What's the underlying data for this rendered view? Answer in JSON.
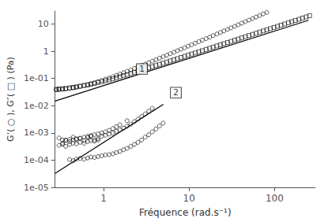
{
  "chart_data": {
    "type": "scatter",
    "log": true,
    "grid": false,
    "xlabel": "Fréquence (rad.s⁻¹)",
    "ylabel": "G’( ○ ), G″( □ ) (Pa)",
    "xlim": [
      0.27,
      300
    ],
    "ylim": [
      1e-05,
      30
    ],
    "xticks": [
      1,
      10,
      100
    ],
    "yticks": [
      {
        "value": 1e-05,
        "label": "1e-05"
      },
      {
        "value": 0.0001,
        "label": "1e-04"
      },
      {
        "value": 0.001,
        "label": "1e-03"
      },
      {
        "value": 0.01,
        "label": "1e-02"
      },
      {
        "value": 0.1,
        "label": "1e-01"
      },
      1,
      10
    ],
    "annotations": [
      {
        "text": "1",
        "x": 2.8,
        "y": 0.22
      },
      {
        "text": "2",
        "x": 7.0,
        "y": 0.03
      }
    ],
    "series": [
      {
        "type": "scatter",
        "marker": "square",
        "color": "black",
        "values": [
          [
            0.28,
            0.04
          ],
          [
            0.3,
            0.041
          ],
          [
            0.33,
            0.042
          ],
          [
            0.36,
            0.043
          ],
          [
            0.4,
            0.045
          ],
          [
            0.44,
            0.047
          ],
          [
            0.48,
            0.049
          ],
          [
            0.53,
            0.052
          ],
          [
            0.59,
            0.055
          ],
          [
            0.65,
            0.058
          ],
          [
            0.71,
            0.062
          ],
          [
            0.78,
            0.066
          ],
          [
            0.86,
            0.071
          ],
          [
            0.95,
            0.076
          ],
          [
            1.05,
            0.082
          ],
          [
            1.16,
            0.089
          ],
          [
            1.28,
            0.097
          ],
          [
            1.41,
            0.106
          ],
          [
            1.55,
            0.116
          ],
          [
            1.71,
            0.127
          ],
          [
            1.88,
            0.139
          ],
          [
            2.08,
            0.153
          ],
          [
            2.29,
            0.169
          ],
          [
            2.52,
            0.185
          ],
          [
            2.78,
            0.204
          ],
          [
            3.06,
            0.224
          ],
          [
            3.37,
            0.246
          ],
          [
            3.71,
            0.271
          ],
          [
            4.09,
            0.299
          ],
          [
            4.51,
            0.33
          ],
          [
            4.97,
            0.363
          ],
          [
            5.47,
            0.4
          ],
          [
            6.02,
            0.441
          ],
          [
            6.63,
            0.486
          ],
          [
            7.3,
            0.535
          ],
          [
            8.04,
            0.59
          ],
          [
            8.85,
            0.65
          ],
          [
            9.75,
            0.715
          ],
          [
            10.7,
            0.787
          ],
          [
            11.8,
            0.867
          ],
          [
            13.0,
            0.955
          ],
          [
            14.3,
            1.052
          ],
          [
            15.8,
            1.16
          ],
          [
            17.4,
            1.28
          ],
          [
            19.1,
            1.41
          ],
          [
            21.1,
            1.56
          ],
          [
            23.2,
            1.72
          ],
          [
            25.5,
            1.9
          ],
          [
            28.1,
            2.09
          ],
          [
            30.9,
            2.3
          ],
          [
            34.1,
            2.54
          ],
          [
            37.5,
            2.8
          ],
          [
            41.3,
            3.09
          ],
          [
            45.5,
            3.41
          ],
          [
            50.1,
            3.76
          ],
          [
            55.2,
            4.15
          ],
          [
            60.8,
            4.57
          ],
          [
            66.9,
            5.04
          ],
          [
            73.7,
            5.56
          ],
          [
            81.1,
            6.13
          ],
          [
            89.3,
            6.77
          ],
          [
            98.3,
            7.47
          ],
          [
            108,
            8.23
          ],
          [
            119,
            9.07
          ],
          [
            131,
            10.0
          ],
          [
            145,
            11.1
          ],
          [
            159,
            12.2
          ],
          [
            175,
            13.5
          ],
          [
            193,
            14.9
          ],
          [
            212,
            16.5
          ],
          [
            234,
            18.2
          ],
          [
            257,
            20.1
          ]
        ]
      },
      {
        "type": "scatter",
        "marker": "circle",
        "color": "black",
        "values": [
          [
            0.28,
            0.038
          ],
          [
            0.3,
            0.039
          ],
          [
            0.33,
            0.04
          ],
          [
            0.36,
            0.041
          ],
          [
            0.4,
            0.043
          ],
          [
            0.44,
            0.045
          ],
          [
            0.48,
            0.048
          ],
          [
            0.53,
            0.051
          ],
          [
            0.59,
            0.055
          ],
          [
            0.65,
            0.059
          ],
          [
            0.71,
            0.064
          ],
          [
            0.78,
            0.07
          ],
          [
            0.86,
            0.077
          ],
          [
            0.95,
            0.085
          ],
          [
            1.05,
            0.094
          ],
          [
            1.16,
            0.104
          ],
          [
            1.28,
            0.116
          ],
          [
            1.41,
            0.13
          ],
          [
            1.55,
            0.145
          ],
          [
            1.71,
            0.163
          ],
          [
            1.88,
            0.183
          ],
          [
            2.08,
            0.206
          ],
          [
            2.29,
            0.233
          ],
          [
            2.52,
            0.263
          ],
          [
            2.78,
            0.298
          ],
          [
            3.06,
            0.337
          ],
          [
            3.37,
            0.382
          ],
          [
            3.71,
            0.432
          ],
          [
            4.09,
            0.49
          ],
          [
            4.51,
            0.556
          ],
          [
            4.97,
            0.631
          ],
          [
            5.47,
            0.716
          ],
          [
            6.02,
            0.812
          ],
          [
            6.63,
            0.922
          ],
          [
            7.3,
            1.047
          ],
          [
            8.04,
            1.19
          ],
          [
            8.85,
            1.35
          ],
          [
            9.75,
            1.53
          ],
          [
            10.7,
            1.74
          ],
          [
            11.8,
            1.98
          ],
          [
            13.0,
            2.25
          ],
          [
            14.3,
            2.56
          ],
          [
            15.8,
            2.91
          ],
          [
            17.4,
            3.31
          ],
          [
            19.1,
            3.77
          ],
          [
            21.1,
            4.29
          ],
          [
            23.2,
            4.88
          ],
          [
            25.5,
            5.56
          ],
          [
            28.1,
            6.34
          ],
          [
            30.9,
            7.22
          ],
          [
            34.1,
            8.22
          ],
          [
            37.5,
            9.37
          ],
          [
            41.3,
            10.7
          ],
          [
            45.5,
            12.2
          ],
          [
            50.1,
            13.9
          ],
          [
            55.2,
            15.8
          ],
          [
            60.8,
            18.0
          ],
          [
            66.9,
            20.6
          ],
          [
            73.7,
            23.5
          ],
          [
            81.1,
            26.7
          ]
        ]
      },
      {
        "type": "scatter",
        "marker": "circle",
        "color": "black",
        "values": [
          [
            0.3,
            0.00065
          ],
          [
            0.33,
            0.00042
          ],
          [
            0.36,
            0.00055
          ],
          [
            0.4,
            0.00048
          ],
          [
            0.44,
            0.0007
          ],
          [
            0.48,
            0.00058
          ],
          [
            0.53,
            0.00063
          ],
          [
            0.59,
            0.00052
          ],
          [
            0.65,
            0.00068
          ],
          [
            0.71,
            0.00075
          ],
          [
            0.78,
            0.00055
          ],
          [
            0.86,
            0.00062
          ],
          [
            0.3,
            0.00035
          ],
          [
            0.33,
            0.00038
          ],
          [
            0.36,
            0.00032
          ],
          [
            0.4,
            0.00038
          ],
          [
            0.44,
            0.00042
          ],
          [
            0.48,
            0.0004
          ],
          [
            0.53,
            0.00045
          ],
          [
            0.59,
            0.00042
          ],
          [
            0.65,
            0.00048
          ],
          [
            0.71,
            0.00052
          ],
          [
            0.78,
            0.0005
          ],
          [
            0.86,
            0.00055
          ],
          [
            0.4,
            0.000105
          ],
          [
            0.44,
            9.5e-05
          ],
          [
            0.48,
            0.00011
          ],
          [
            0.53,
            0.000115
          ],
          [
            0.59,
            0.000108
          ],
          [
            0.65,
            0.00012
          ],
          [
            0.71,
            0.00013
          ],
          [
            0.78,
            0.000125
          ],
          [
            0.86,
            0.000135
          ],
          [
            0.95,
            0.000145
          ],
          [
            1.05,
            0.000155
          ],
          [
            1.16,
            0.00016
          ],
          [
            1.28,
            0.00017
          ],
          [
            1.41,
            0.00019
          ],
          [
            1.55,
            0.00021
          ],
          [
            1.71,
            0.00024
          ],
          [
            1.88,
            0.00027
          ],
          [
            2.08,
            0.00032
          ],
          [
            2.29,
            0.00038
          ],
          [
            2.52,
            0.00045
          ],
          [
            2.78,
            0.00055
          ],
          [
            3.06,
            0.0007
          ],
          [
            3.37,
            0.00085
          ],
          [
            3.71,
            0.0011
          ],
          [
            4.09,
            0.0014
          ],
          [
            4.51,
            0.0018
          ],
          [
            4.97,
            0.0023
          ],
          [
            0.95,
            0.00075
          ],
          [
            1.05,
            0.00082
          ],
          [
            1.16,
            0.0009
          ],
          [
            1.28,
            0.001
          ],
          [
            1.41,
            0.00115
          ],
          [
            1.55,
            0.0013
          ],
          [
            1.71,
            0.0015
          ],
          [
            1.88,
            0.00175
          ],
          [
            2.08,
            0.0021
          ],
          [
            2.29,
            0.0026
          ],
          [
            2.52,
            0.0032
          ],
          [
            2.78,
            0.004
          ],
          [
            3.06,
            0.005
          ],
          [
            3.37,
            0.0063
          ],
          [
            3.71,
            0.008
          ],
          [
            0.33,
            0.00055
          ],
          [
            0.36,
            0.00052
          ],
          [
            0.4,
            0.00058
          ],
          [
            0.44,
            0.00056
          ],
          [
            0.48,
            0.00061
          ],
          [
            0.53,
            0.00064
          ],
          [
            0.59,
            0.0007
          ],
          [
            0.65,
            0.00075
          ],
          [
            0.71,
            0.0008
          ],
          [
            0.78,
            0.00086
          ],
          [
            0.86,
            0.00092
          ],
          [
            0.95,
            0.001
          ],
          [
            1.05,
            0.0011
          ],
          [
            1.16,
            0.00125
          ],
          [
            1.28,
            0.00145
          ],
          [
            1.41,
            0.0017
          ],
          [
            1.55,
            0.002
          ],
          [
            1.88,
            0.0028
          ]
        ]
      },
      {
        "type": "line",
        "line_style": "solid",
        "color": "black",
        "values": [
          [
            0.27,
            0.01485
          ],
          [
            250,
            13.75
          ]
        ]
      },
      {
        "type": "line",
        "line_style": "solid",
        "color": "black",
        "values": [
          [
            0.27,
            3.2805e-05
          ],
          [
            5.0,
            0.01125
          ]
        ]
      }
    ]
  }
}
